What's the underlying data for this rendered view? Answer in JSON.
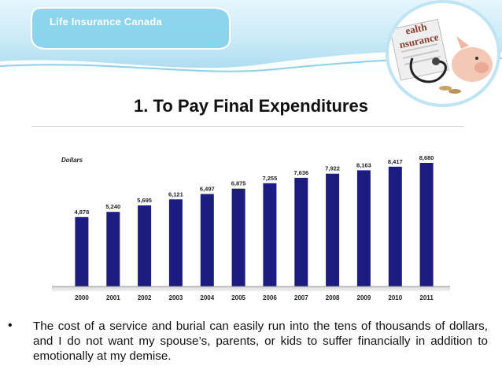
{
  "header": {
    "brand": "Life Insurance Canada",
    "logo_text_line1": "ealth",
    "logo_text_line2": "nsurance",
    "colors": {
      "band": "#a9dcef",
      "wave": "#ffffff"
    }
  },
  "slide": {
    "title": "1. To Pay Final Expenditures"
  },
  "chart_data": {
    "type": "bar",
    "title": "",
    "xlabel": "",
    "ylabel": "Dollars",
    "categories": [
      "2000",
      "2001",
      "2002",
      "2003",
      "2004",
      "2005",
      "2006",
      "2007",
      "2008",
      "2009",
      "2010",
      "2011"
    ],
    "values": [
      4878,
      5240,
      5695,
      6121,
      6497,
      6875,
      7255,
      7636,
      7922,
      8163,
      8417,
      8680
    ],
    "value_labels": [
      "4,878",
      "5,240",
      "5,695",
      "6,121",
      "6,497",
      "6,875",
      "7,255",
      "7,636",
      "7,922",
      "8,163",
      "8,417",
      "8,680"
    ],
    "ylim": [
      0,
      9400
    ],
    "grid": false,
    "legend": "none",
    "bar_color": "#1c1c80"
  },
  "bullet": {
    "symbol": "•",
    "text": "The cost of a service and burial can easily run into the tens of thousands of dollars, and I do not want my spouse’s, parents, or kids to suffer financially in addition to emotionally at my demise."
  }
}
